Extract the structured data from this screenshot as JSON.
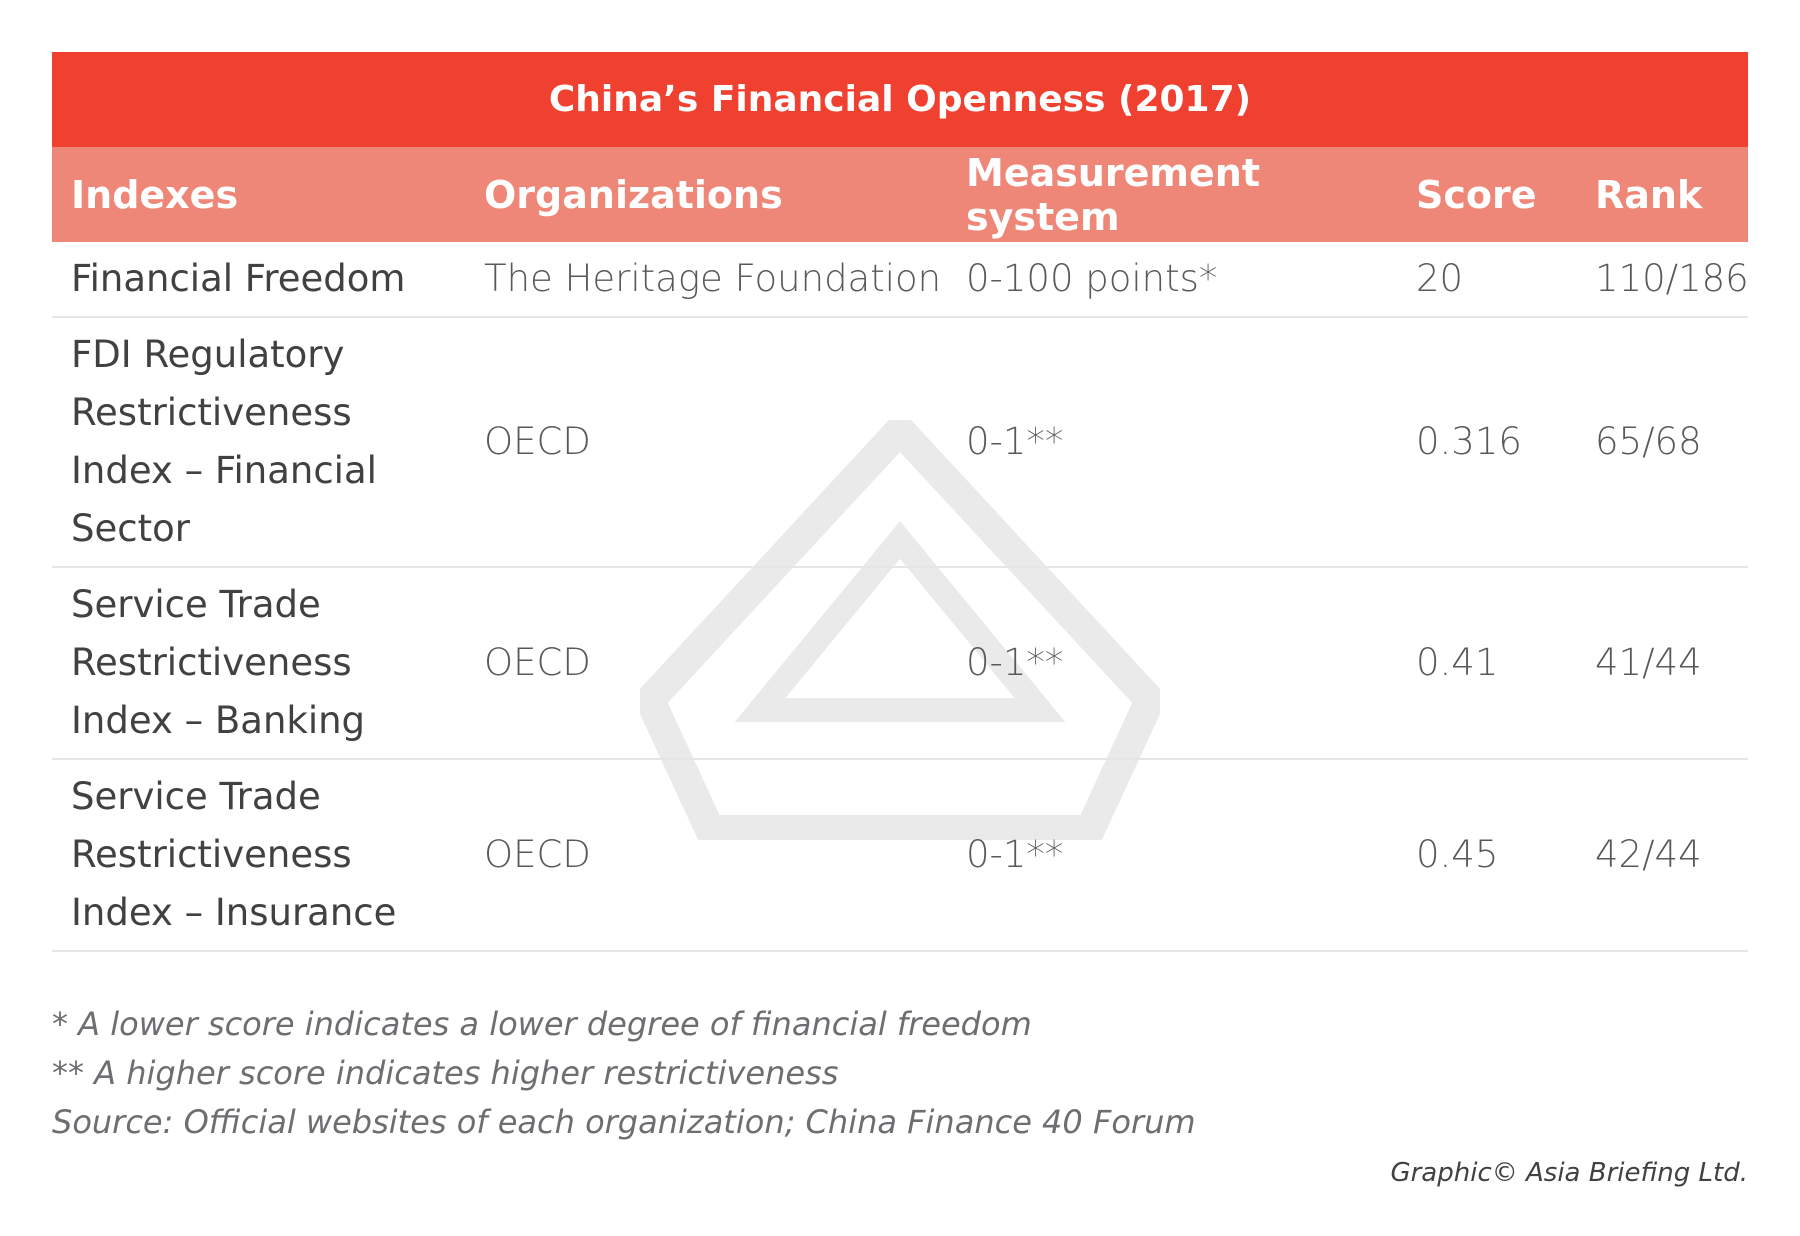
{
  "title": "China’s Financial Openness (2017)",
  "table": {
    "columns": [
      "Indexes",
      "Organizations",
      "Measurement system",
      "Score",
      "Rank"
    ],
    "rows": [
      [
        "Financial Freedom",
        "The Heritage Foundation",
        "0-100 points*",
        "20",
        "110/186"
      ],
      [
        "FDI Regulatory Restrictiveness Index – Financial Sector",
        "OECD",
        "0-1**",
        "0.316",
        "65/68"
      ],
      [
        "Service Trade Restrictiveness Index – Banking",
        "OECD",
        "0-1**",
        "0.41",
        "41/44"
      ],
      [
        "Service Trade Restrictiveness Index – Insurance",
        "OECD",
        "0-1**",
        "0.45",
        "42/44"
      ]
    ]
  },
  "notes": [
    "* A lower score indicates a lower degree of financial freedom",
    "** A higher score indicates higher restrictiveness",
    "Source: Official websites of each organization; China Finance 40 Forum"
  ],
  "credit": "Graphic© Asia Briefing Ltd."
}
